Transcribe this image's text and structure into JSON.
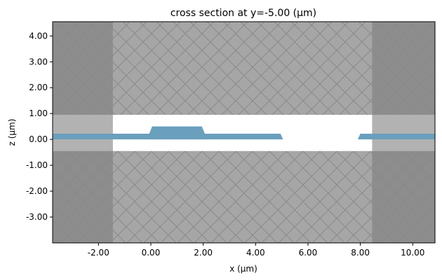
{
  "chart_data": {
    "type": "cross-section",
    "title": "cross section at y=-5.00 (μm)",
    "xlabel": "x (μm)",
    "ylabel": "z (μm)",
    "xlim": [
      -3.75,
      10.85
    ],
    "ylim": [
      -4.0,
      4.55
    ],
    "x_ticks": [
      -2.0,
      0.0,
      2.0,
      4.0,
      6.0,
      8.0,
      10.0
    ],
    "x_tick_labels": [
      "-2.00",
      "0.00",
      "2.00",
      "4.00",
      "6.00",
      "8.00",
      "10.00"
    ],
    "y_ticks": [
      -3.0,
      -2.0,
      -1.0,
      0.0,
      1.0,
      2.0,
      3.0,
      4.0
    ],
    "y_tick_labels": [
      "-3.00",
      "-2.00",
      "-1.00",
      "0.00",
      "1.00",
      "2.00",
      "3.00",
      "4.00"
    ],
    "grid": false,
    "colors": {
      "hatched_region": "#a6a6a6",
      "dark_band": "#888888",
      "cladding_band": "#b2b2b2",
      "waveguide": "#6a9fbd",
      "clear_window": "#ffffff",
      "hatch_line": "#8a8a8a"
    },
    "regions": [
      {
        "name": "dark-left-band",
        "x": [
          -3.75,
          -1.45
        ],
        "z": [
          -4.0,
          4.55
        ]
      },
      {
        "name": "dark-right-band",
        "x": [
          8.45,
          10.85
        ],
        "z": [
          -4.0,
          4.55
        ]
      },
      {
        "name": "cladding-left",
        "x": [
          -3.75,
          -1.45
        ],
        "z": [
          -0.45,
          0.95
        ]
      },
      {
        "name": "cladding-right",
        "x": [
          8.45,
          10.85
        ],
        "z": [
          -0.45,
          0.95
        ]
      },
      {
        "name": "clear-window",
        "x": [
          -1.45,
          8.45
        ],
        "z": [
          -0.45,
          0.95
        ]
      }
    ],
    "waveguide": {
      "slab_z": [
        0.0,
        0.22
      ],
      "slab_left": [
        [
          -3.75,
          5.05
        ]
      ],
      "slab_right": [
        [
          7.9,
          10.85
        ]
      ],
      "rib": {
        "x_bottom": [
          -0.15,
          2.15
        ],
        "x_top": [
          0.05,
          1.95
        ],
        "z": [
          0.0,
          0.5
        ]
      }
    }
  }
}
